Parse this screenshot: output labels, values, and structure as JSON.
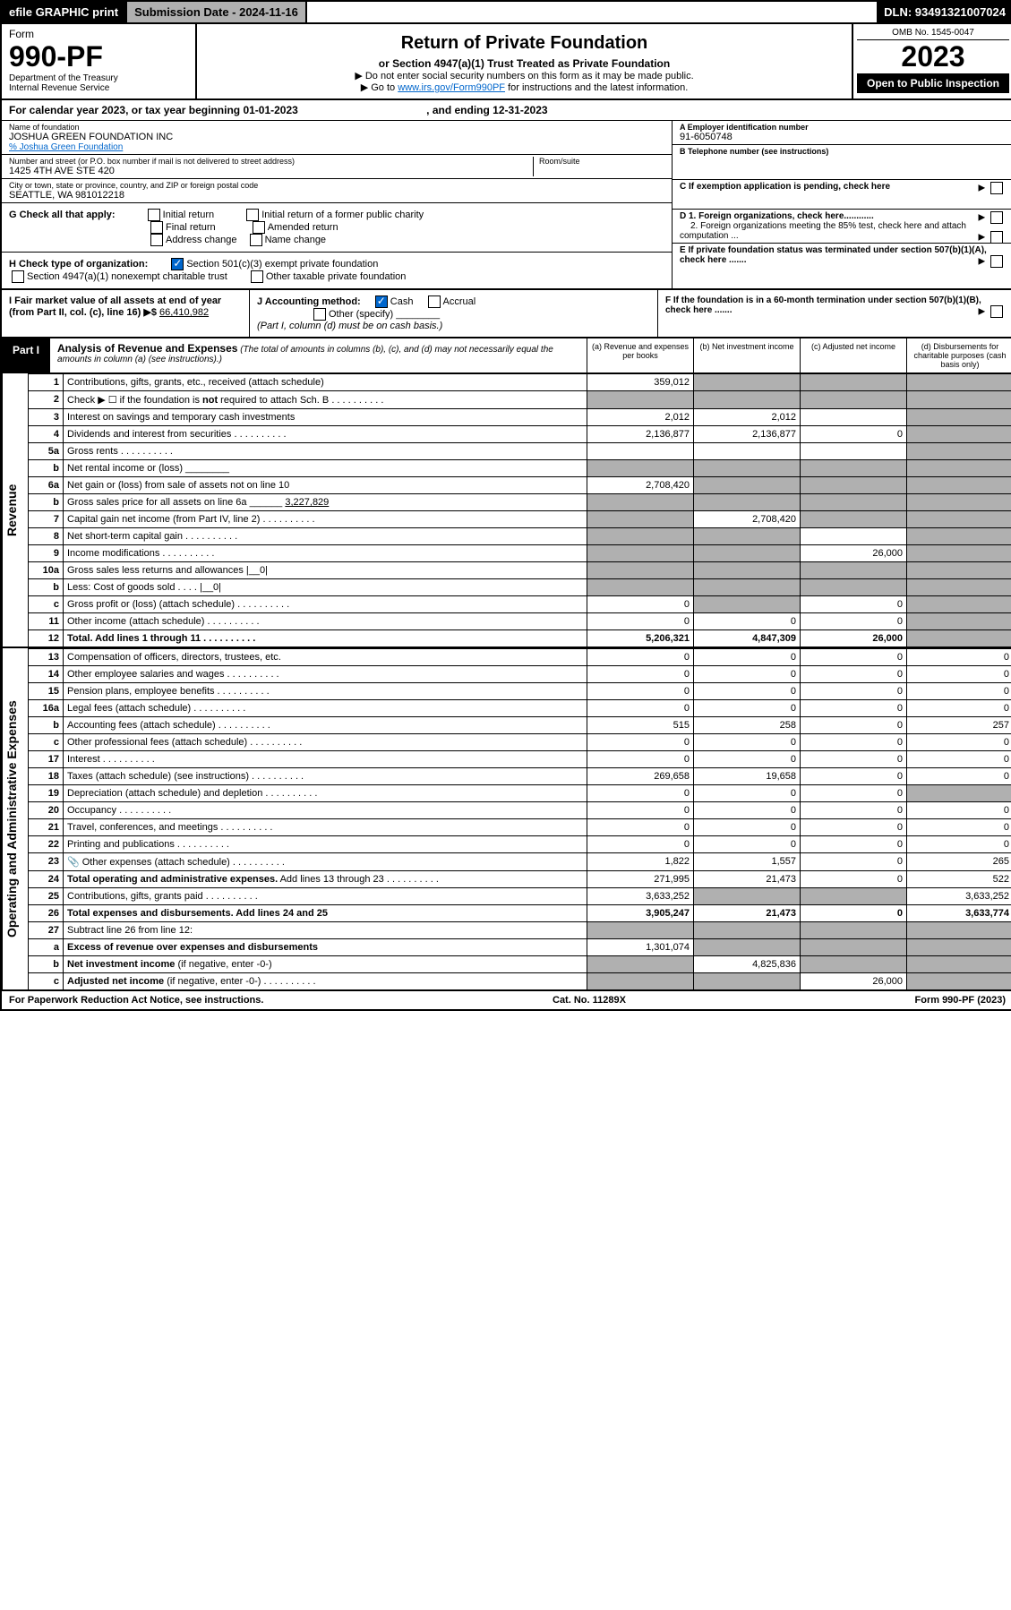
{
  "topbar": {
    "efile": "efile GRAPHIC print",
    "sub": "Submission Date - 2024-11-16",
    "dln": "DLN: 93491321007024"
  },
  "hdr": {
    "form": "Form",
    "num": "990-PF",
    "dept": "Department of the Treasury",
    "irs": "Internal Revenue Service",
    "title": "Return of Private Foundation",
    "subtitle": "or Section 4947(a)(1) Trust Treated as Private Foundation",
    "inst1": "▶ Do not enter social security numbers on this form as it may be made public.",
    "inst2": "▶ Go to ",
    "link": "www.irs.gov/Form990PF",
    "inst3": " for instructions and the latest information.",
    "omb": "OMB No. 1545-0047",
    "year": "2023",
    "open": "Open to Public Inspection"
  },
  "calyr": {
    "a": "For calendar year 2023, or tax year beginning 01-01-2023",
    "b": ", and ending 12-31-2023"
  },
  "name": {
    "lbl": "Name of foundation",
    "val": "JOSHUA GREEN FOUNDATION INC",
    "co": "% Joshua Green Foundation"
  },
  "addr": {
    "lbl": "Number and street (or P.O. box number if mail is not delivered to street address)",
    "val": "1425 4TH AVE STE 420",
    "room": "Room/suite"
  },
  "city": {
    "lbl": "City or town, state or province, country, and ZIP or foreign postal code",
    "val": "SEATTLE, WA  981012218"
  },
  "ein": {
    "lbl": "A Employer identification number",
    "val": "91-6050748"
  },
  "tel": {
    "lbl": "B Telephone number (see instructions)"
  },
  "c": {
    "txt": "C If exemption application is pending, check here"
  },
  "g": {
    "lbl": "G Check all that apply:",
    "o": [
      "Initial return",
      "Final return",
      "Address change",
      "Initial return of a former public charity",
      "Amended return",
      "Name change"
    ]
  },
  "d": {
    "d1": "D 1. Foreign organizations, check here............",
    "d2": "2. Foreign organizations meeting the 85% test, check here and attach computation ..."
  },
  "h": {
    "lbl": "H Check type of organization:",
    "o1": "Section 501(c)(3) exempt private foundation",
    "o2": "Section 4947(a)(1) nonexempt charitable trust",
    "o3": "Other taxable private foundation"
  },
  "e": {
    "txt": "E  If private foundation status was terminated under section 507(b)(1)(A), check here ......."
  },
  "i": {
    "lbl": "I Fair market value of all assets at end of year (from Part II, col. (c), line 16) ▶$",
    "val": "66,410,982"
  },
  "j": {
    "lbl": "J Accounting method:",
    "o1": "Cash",
    "o2": "Accrual",
    "o3": "Other (specify)",
    "note": "(Part I, column (d) must be on cash basis.)"
  },
  "f": {
    "txt": "F  If the foundation is in a 60-month termination under section 507(b)(1)(B), check here ......."
  },
  "part1": {
    "tag": "Part I",
    "title": "Analysis of Revenue and Expenses",
    "note": "(The total of amounts in columns (b), (c), and (d) may not necessarily equal the amounts in column (a) (see instructions).)",
    "cols": [
      "(a)  Revenue and expenses per books",
      "(b)  Net investment income",
      "(c)  Adjusted net income",
      "(d)  Disbursements for charitable purposes (cash basis only)"
    ]
  },
  "sides": {
    "rev": "Revenue",
    "exp": "Operating and Administrative Expenses"
  },
  "rows": [
    {
      "n": "1",
      "d": "Contributions, gifts, grants, etc., received (attach schedule)",
      "a": "359,012",
      "bs": 1,
      "cs": 1,
      "ds": 1
    },
    {
      "n": "2",
      "d": "Check ▶ ☐ if the foundation is <b>not</b> required to attach Sch. B",
      "dots": 1,
      "as": 1,
      "bs": 1,
      "cs": 1,
      "ds": 1
    },
    {
      "n": "3",
      "d": "Interest on savings and temporary cash investments",
      "a": "2,012",
      "b": "2,012",
      "ds": 1
    },
    {
      "n": "4",
      "d": "Dividends and interest from securities",
      "dots": 1,
      "a": "2,136,877",
      "b": "2,136,877",
      "c": "0",
      "ds": 1
    },
    {
      "n": "5a",
      "d": "Gross rents",
      "dots": 1,
      "ds": 1
    },
    {
      "n": "b",
      "d": "Net rental income or (loss) ________",
      "as": 1,
      "bs": 1,
      "cs": 1,
      "ds": 1
    },
    {
      "n": "6a",
      "d": "Net gain or (loss) from sale of assets not on line 10",
      "a": "2,708,420",
      "bs": 1,
      "cs": 1,
      "ds": 1
    },
    {
      "n": "b",
      "d": "Gross sales price for all assets on line 6a ______ <u>3,227,829</u>",
      "as": 1,
      "bs": 1,
      "cs": 1,
      "ds": 1
    },
    {
      "n": "7",
      "d": "Capital gain net income (from Part IV, line 2)",
      "dots": 1,
      "as": 1,
      "b": "2,708,420",
      "cs": 1,
      "ds": 1
    },
    {
      "n": "8",
      "d": "Net short-term capital gain",
      "dots": 1,
      "as": 1,
      "bs": 1,
      "ds": 1
    },
    {
      "n": "9",
      "d": "Income modifications",
      "dots": 1,
      "as": 1,
      "bs": 1,
      "c": "26,000",
      "ds": 1
    },
    {
      "n": "10a",
      "d": "Gross sales less returns and allowances   |__0|",
      "as": 1,
      "bs": 1,
      "cs": 1,
      "ds": 1
    },
    {
      "n": "b",
      "d": "Less: Cost of goods sold   .  .  .  .   |__0|",
      "as": 1,
      "bs": 1,
      "cs": 1,
      "ds": 1
    },
    {
      "n": "c",
      "d": "Gross profit or (loss) (attach schedule)",
      "dots": 1,
      "a": "0",
      "bs": 1,
      "c": "0",
      "ds": 1
    },
    {
      "n": "11",
      "d": "Other income (attach schedule)",
      "dots": 1,
      "a": "0",
      "b": "0",
      "c": "0",
      "ds": 1
    },
    {
      "n": "12",
      "d": "<b>Total.</b> Add lines 1 through 11",
      "dots": 1,
      "a": "5,206,321",
      "b": "4,847,309",
      "c": "26,000",
      "ds": 1,
      "bold": 1
    }
  ],
  "exprows": [
    {
      "n": "13",
      "d": "Compensation of officers, directors, trustees, etc.",
      "a": "0",
      "b": "0",
      "c": "0",
      "dd": "0"
    },
    {
      "n": "14",
      "d": "Other employee salaries and wages",
      "dots": 1,
      "a": "0",
      "b": "0",
      "c": "0",
      "dd": "0"
    },
    {
      "n": "15",
      "d": "Pension plans, employee benefits",
      "dots": 1,
      "a": "0",
      "b": "0",
      "c": "0",
      "dd": "0"
    },
    {
      "n": "16a",
      "d": "Legal fees (attach schedule)",
      "dots": 1,
      "a": "0",
      "b": "0",
      "c": "0",
      "dd": "0"
    },
    {
      "n": "b",
      "d": "Accounting fees (attach schedule)",
      "dots": 1,
      "a": "515",
      "b": "258",
      "c": "0",
      "dd": "257"
    },
    {
      "n": "c",
      "d": "Other professional fees (attach schedule)",
      "dots": 1,
      "a": "0",
      "b": "0",
      "c": "0",
      "dd": "0"
    },
    {
      "n": "17",
      "d": "Interest",
      "dots": 1,
      "a": "0",
      "b": "0",
      "c": "0",
      "dd": "0"
    },
    {
      "n": "18",
      "d": "Taxes (attach schedule) (see instructions)",
      "dots": 1,
      "a": "269,658",
      "b": "19,658",
      "c": "0",
      "dd": "0"
    },
    {
      "n": "19",
      "d": "Depreciation (attach schedule) and depletion",
      "dots": 1,
      "a": "0",
      "b": "0",
      "c": "0",
      "ds": 1
    },
    {
      "n": "20",
      "d": "Occupancy",
      "dots": 1,
      "a": "0",
      "b": "0",
      "c": "0",
      "dd": "0"
    },
    {
      "n": "21",
      "d": "Travel, conferences, and meetings",
      "dots": 1,
      "a": "0",
      "b": "0",
      "c": "0",
      "dd": "0"
    },
    {
      "n": "22",
      "d": "Printing and publications",
      "dots": 1,
      "a": "0",
      "b": "0",
      "c": "0",
      "dd": "0"
    },
    {
      "n": "23",
      "d": "Other expenses (attach schedule)",
      "dots": 1,
      "icon": 1,
      "a": "1,822",
      "b": "1,557",
      "c": "0",
      "dd": "265"
    },
    {
      "n": "24",
      "d": "<b>Total operating and administrative expenses.</b> Add lines 13 through 23",
      "dots": 1,
      "a": "271,995",
      "b": "21,473",
      "c": "0",
      "dd": "522"
    },
    {
      "n": "25",
      "d": "Contributions, gifts, grants paid",
      "dots": 1,
      "a": "3,633,252",
      "bs": 1,
      "cs": 1,
      "dd": "3,633,252"
    },
    {
      "n": "26",
      "d": "<b>Total expenses and disbursements.</b> Add lines 24 and 25",
      "a": "3,905,247",
      "b": "21,473",
      "c": "0",
      "dd": "3,633,774",
      "bold": 1
    },
    {
      "n": "27",
      "d": "Subtract line 26 from line 12:",
      "as": 1,
      "bs": 1,
      "cs": 1,
      "ds": 1
    },
    {
      "n": "a",
      "d": "<b>Excess of revenue over expenses and disbursements</b>",
      "a": "1,301,074",
      "bs": 1,
      "cs": 1,
      "ds": 1
    },
    {
      "n": "b",
      "d": "<b>Net investment income</b> (if negative, enter -0-)",
      "as": 1,
      "b": "4,825,836",
      "cs": 1,
      "ds": 1
    },
    {
      "n": "c",
      "d": "<b>Adjusted net income</b> (if negative, enter -0-)",
      "dots": 1,
      "as": 1,
      "bs": 1,
      "c": "26,000",
      "ds": 1
    }
  ],
  "ftr": {
    "l": "For Paperwork Reduction Act Notice, see instructions.",
    "c": "Cat. No. 11289X",
    "r": "Form 990-PF (2023)"
  }
}
